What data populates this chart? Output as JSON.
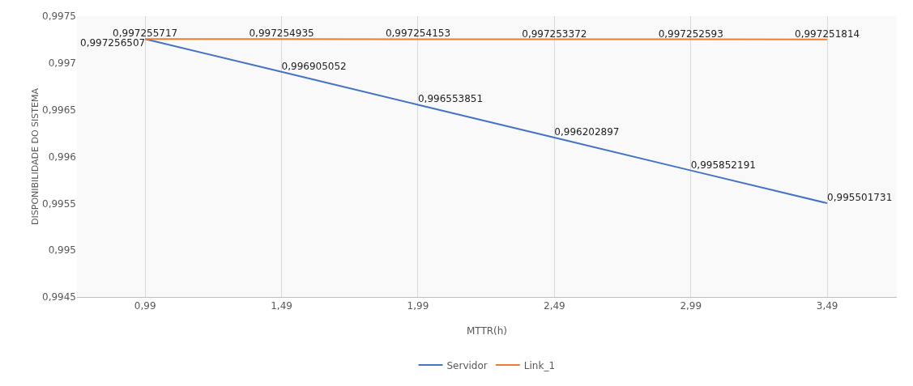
{
  "chart_data": {
    "type": "line",
    "xlabel": "MTTR(h)",
    "ylabel": "DISPONIBILIDADE DO SISTEMA",
    "x": [
      0.99,
      1.49,
      1.99,
      2.49,
      2.99,
      3.49
    ],
    "series": [
      {
        "name": "Servidor",
        "color": "#4472c4",
        "values": [
          0.997256507,
          0.996905052,
          0.996553851,
          0.996202897,
          0.995852191,
          0.995501731
        ],
        "value_labels": [
          "0,997256507",
          "0,996905052",
          "0,996553851",
          "0,996202897",
          "0,995852191",
          "0,995501731"
        ]
      },
      {
        "name": "Link_1",
        "color": "#ed7d31",
        "values": [
          0.997255717,
          0.997254935,
          0.997254153,
          0.997253372,
          0.997252593,
          0.997251814
        ],
        "value_labels": [
          "0,997255717",
          "0,997254935",
          "0,997254153",
          "0,997253372",
          "0,997252593",
          "0,997251814"
        ]
      }
    ],
    "xlim": [
      0.74,
      3.745
    ],
    "xticks": [
      {
        "value": 0.99,
        "label": "0,99"
      },
      {
        "value": 1.49,
        "label": "1,49"
      },
      {
        "value": 1.99,
        "label": "1,99"
      },
      {
        "value": 2.49,
        "label": "2,49"
      },
      {
        "value": 2.99,
        "label": "2,99"
      },
      {
        "value": 3.49,
        "label": "3,49"
      }
    ],
    "ylim": [
      0.9945,
      0.9975
    ],
    "yticks": [
      {
        "value": 0.9945,
        "label": "0,9945"
      },
      {
        "value": 0.995,
        "label": "0,995"
      },
      {
        "value": 0.9955,
        "label": "0,9955"
      },
      {
        "value": 0.996,
        "label": "0,996"
      },
      {
        "value": 0.9965,
        "label": "0,9965"
      },
      {
        "value": 0.997,
        "label": "0,997"
      },
      {
        "value": 0.9975,
        "label": "0,9975"
      }
    ],
    "grid": "x",
    "legend": "bottom",
    "marker": "none",
    "line_style": "solid"
  }
}
